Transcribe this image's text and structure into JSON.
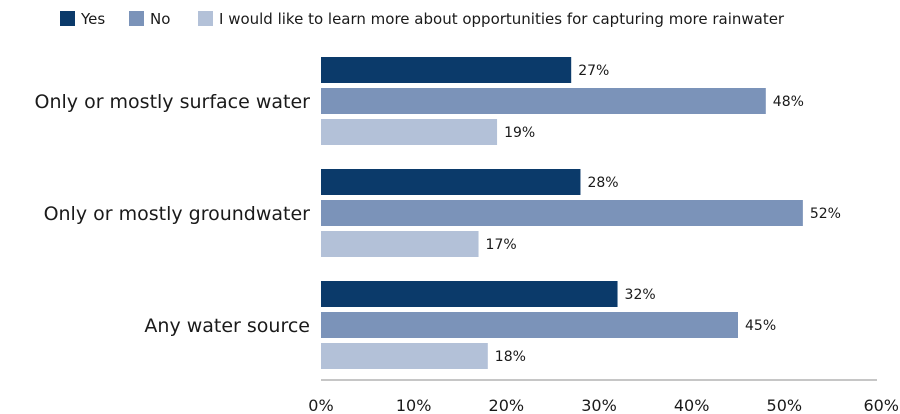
{
  "chart_data": {
    "type": "bar",
    "orientation": "horizontal",
    "categories": [
      "Only or mostly surface water",
      "Only or mostly groundwater",
      "Any water source"
    ],
    "series": [
      {
        "name": "Yes",
        "color": "#0b3a6a",
        "values": [
          27,
          28,
          32
        ],
        "labels": [
          "27%",
          "28%",
          "32%"
        ]
      },
      {
        "name": "No",
        "color": "#7b93b9",
        "values": [
          48,
          52,
          45
        ],
        "labels": [
          "48%",
          "52%",
          "45%"
        ]
      },
      {
        "name": "I would like to learn more about opportunities for capturing more rainwater",
        "color": "#b3c1d8",
        "values": [
          19,
          17,
          18
        ],
        "labels": [
          "19%",
          "17%",
          "18%"
        ]
      }
    ],
    "xlim": [
      0,
      60
    ],
    "x_ticks": [
      0,
      10,
      20,
      30,
      40,
      50,
      60
    ],
    "x_tick_labels": [
      "0%",
      "10%",
      "20%",
      "30%",
      "40%",
      "50%",
      "60%"
    ],
    "legend_position": "top",
    "grid": false
  }
}
